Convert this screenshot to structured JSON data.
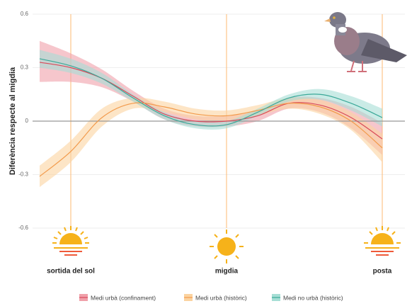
{
  "chart_data": {
    "type": "line",
    "y_label": "Diferència respecte al migdia",
    "categories": [
      null,
      "sortida del sol",
      null,
      null,
      null,
      null,
      "migdia",
      null,
      null,
      null,
      null,
      "posta"
    ],
    "ylim": [
      -0.6,
      0.6
    ],
    "yticks": [
      -0.6,
      -0.3,
      0,
      0.3,
      0.6
    ],
    "grid": true,
    "series": [
      {
        "name": "Medi urbà (confinament)",
        "color": "#d94a5a",
        "band_color": "#f0a0aa",
        "values": [
          0.33,
          0.3,
          0.24,
          0.14,
          0.04,
          0.0,
          0.0,
          0.03,
          0.1,
          0.09,
          0.02,
          -0.1
        ],
        "lower": [
          0.22,
          0.22,
          0.19,
          0.11,
          0.01,
          -0.03,
          -0.03,
          0.0,
          0.07,
          0.05,
          -0.04,
          -0.19
        ],
        "upper": [
          0.45,
          0.38,
          0.29,
          0.17,
          0.07,
          0.03,
          0.03,
          0.06,
          0.13,
          0.13,
          0.08,
          -0.01
        ]
      },
      {
        "name": "Medi urbà (històric)",
        "color": "#f29a4b",
        "band_color": "#fbd3a0",
        "values": [
          -0.31,
          -0.17,
          0.02,
          0.1,
          0.08,
          0.04,
          0.03,
          0.06,
          0.1,
          0.08,
          0.0,
          -0.15
        ],
        "lower": [
          -0.37,
          -0.23,
          -0.03,
          0.07,
          0.05,
          0.01,
          0.0,
          0.03,
          0.07,
          0.04,
          -0.05,
          -0.23
        ],
        "upper": [
          -0.25,
          -0.11,
          0.07,
          0.13,
          0.11,
          0.07,
          0.06,
          0.09,
          0.13,
          0.12,
          0.05,
          -0.07
        ]
      },
      {
        "name": "Medi no urbà (històric)",
        "color": "#3aa898",
        "band_color": "#a6ded5",
        "values": [
          0.35,
          0.31,
          0.24,
          0.13,
          0.03,
          -0.02,
          -0.02,
          0.05,
          0.13,
          0.15,
          0.1,
          0.02
        ],
        "lower": [
          0.3,
          0.27,
          0.21,
          0.11,
          0.01,
          -0.04,
          -0.04,
          0.03,
          0.11,
          0.12,
          0.06,
          -0.03
        ],
        "upper": [
          0.4,
          0.35,
          0.27,
          0.15,
          0.05,
          0.0,
          0.0,
          0.07,
          0.15,
          0.18,
          0.14,
          0.07
        ]
      }
    ]
  }
}
